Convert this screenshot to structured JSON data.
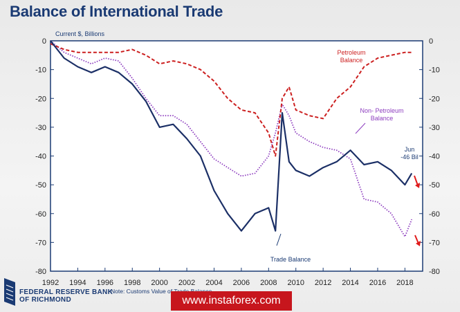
{
  "title": "Balance of International Trade",
  "note": "Note: Customs Value of Trade Balance",
  "logo": {
    "line1": "FEDERAL RESERVE BANK",
    "line2": "OF RICHMOND"
  },
  "watermark": "www.instaforex.com",
  "chart_data": {
    "type": "line",
    "ylabel": "Current $, Billions",
    "x_ticks": [
      "1992",
      "1994",
      "1996",
      "1998",
      "2000",
      "2002",
      "2004",
      "2006",
      "2008",
      "2010",
      "2012",
      "2014",
      "2016",
      "2018"
    ],
    "y_ticks": [
      "0",
      "-10",
      "-20",
      "-30",
      "-40",
      "-50",
      "-60",
      "-70",
      "-80"
    ],
    "xlim": [
      1992,
      2019.3
    ],
    "ylim": [
      -80,
      0
    ],
    "grid": false,
    "annotations": {
      "petroleum_line1": "Petroleum",
      "petroleum_line2": "Balance",
      "nonpetroleum_line1": "Non- Petroleum",
      "nonpetroleum_line2": "Balance",
      "trade": "Trade Balance",
      "jun_line1": "Jun",
      "jun_line2": "-46 Bil"
    },
    "series": [
      {
        "name": "Trade Balance",
        "color": "#1b2f66",
        "style": "solid",
        "x": [
          1992,
          1993,
          1994,
          1995,
          1996,
          1997,
          1998,
          1999,
          2000,
          2001,
          2002,
          2003,
          2004,
          2005,
          2006,
          2007,
          2008,
          2008.5,
          2009,
          2009.5,
          2010,
          2011,
          2012,
          2013,
          2014,
          2015,
          2016,
          2017,
          2018,
          2018.5
        ],
        "y": [
          0,
          -6,
          -9,
          -11,
          -9,
          -11,
          -15,
          -21,
          -30,
          -29,
          -34,
          -40,
          -52,
          -60,
          -66,
          -60,
          -58,
          -66,
          -25,
          -42,
          -45,
          -47,
          -44,
          -42,
          -38,
          -43,
          -42,
          -45,
          -50,
          -46
        ]
      },
      {
        "name": "Petroleum Balance",
        "color": "#cc1f1f",
        "style": "dashed",
        "x": [
          1992,
          1993,
          1994,
          1995,
          1996,
          1997,
          1998,
          1999,
          2000,
          2001,
          2002,
          2003,
          2004,
          2005,
          2006,
          2007,
          2008,
          2008.5,
          2009,
          2009.5,
          2010,
          2011,
          2012,
          2013,
          2014,
          2015,
          2016,
          2017,
          2018,
          2018.5
        ],
        "y": [
          -1,
          -3,
          -4,
          -4,
          -4,
          -4,
          -3,
          -5,
          -8,
          -7,
          -8,
          -10,
          -14,
          -20,
          -24,
          -25,
          -32,
          -40,
          -20,
          -16,
          -24,
          -26,
          -27,
          -20,
          -16,
          -9,
          -6,
          -5,
          -4,
          -4
        ]
      },
      {
        "name": "Non- Petroleum Balance",
        "color": "#8d3dbf",
        "style": "dotted",
        "x": [
          1992,
          1993,
          1994,
          1995,
          1996,
          1997,
          1998,
          1999,
          2000,
          2001,
          2002,
          2003,
          2004,
          2005,
          2006,
          2007,
          2008,
          2008.5,
          2009,
          2009.5,
          2010,
          2011,
          2012,
          2013,
          2014,
          2015,
          2016,
          2017,
          2018,
          2018.5
        ],
        "y": [
          0,
          -4,
          -6,
          -8,
          -6,
          -7,
          -13,
          -20,
          -26,
          -26,
          -29,
          -35,
          -41,
          -44,
          -47,
          -46,
          -40,
          -32,
          -22,
          -26,
          -32,
          -35,
          -37,
          -38,
          -41,
          -55,
          -56,
          -60,
          -68,
          -62
        ]
      }
    ]
  }
}
